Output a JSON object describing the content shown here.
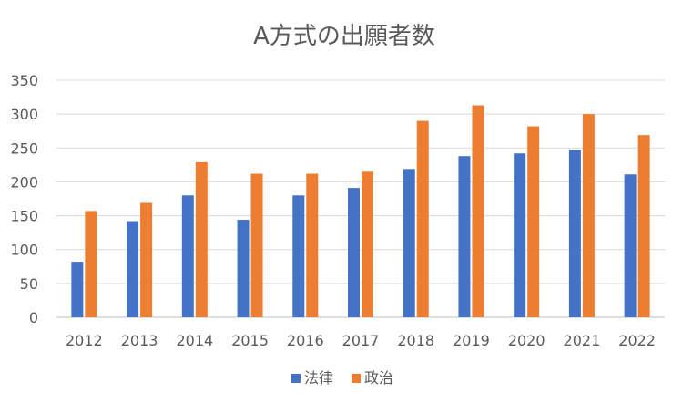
{
  "chart_data": {
    "type": "bar",
    "title": "A方式の出願者数",
    "xlabel": "",
    "ylabel": "",
    "categories": [
      "2012",
      "2013",
      "2014",
      "2015",
      "2016",
      "2017",
      "2018",
      "2019",
      "2020",
      "2021",
      "2022"
    ],
    "series": [
      {
        "name": "法律",
        "color": "#4472C4",
        "values": [
          82,
          142,
          180,
          144,
          180,
          191,
          219,
          238,
          242,
          247,
          211
        ]
      },
      {
        "name": "政治",
        "color": "#ED7D31",
        "values": [
          157,
          169,
          229,
          212,
          212,
          215,
          290,
          313,
          282,
          300,
          269
        ]
      }
    ],
    "ylim": [
      0,
      350
    ],
    "yticks": [
      0,
      50,
      100,
      150,
      200,
      250,
      300,
      350
    ],
    "grid": true,
    "legend_position": "bottom"
  }
}
